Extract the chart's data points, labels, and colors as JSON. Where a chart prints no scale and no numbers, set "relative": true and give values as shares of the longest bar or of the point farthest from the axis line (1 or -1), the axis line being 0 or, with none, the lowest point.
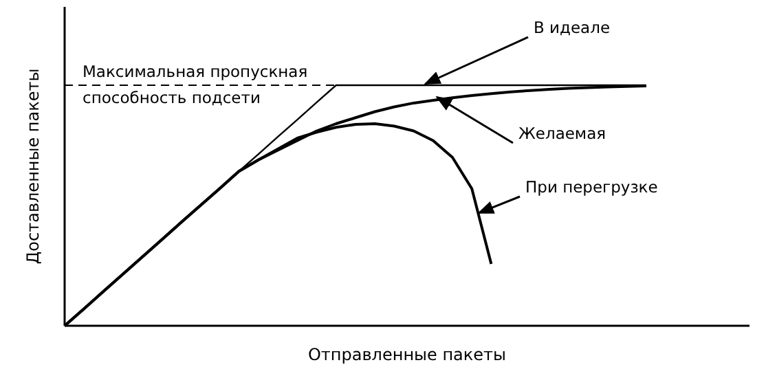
{
  "chart_data": {
    "type": "line",
    "relative": true,
    "xlabel": "Отправленные пакеты",
    "ylabel": "Доставленные пакеты",
    "categories": [
      null,
      null,
      null,
      null,
      null,
      null,
      null,
      null,
      null,
      null,
      null,
      null,
      null,
      null,
      null,
      null,
      null,
      null,
      null,
      null,
      null,
      null,
      null,
      null,
      null,
      null,
      null,
      null,
      null,
      null,
      null
    ],
    "ref_lines": [
      {
        "axis": "y",
        "value": 1,
        "label": "Максимальная пропускная способность подсети",
        "line_style": "dashed",
        "color": "#000000"
      }
    ],
    "series": [
      {
        "name": "В идеале",
        "color": "#000000",
        "values": [
          0,
          0.071,
          0.143,
          0.214,
          0.286,
          0.357,
          0.429,
          0.5,
          0.571,
          0.643,
          0.714,
          0.786,
          0.857,
          0.929,
          1,
          1,
          1,
          1,
          1,
          1,
          1,
          1,
          1,
          1,
          1,
          1,
          1,
          1,
          1,
          1,
          1
        ]
      },
      {
        "name": "Желаемая",
        "color": "#000000",
        "values": [
          0,
          0.071,
          0.143,
          0.214,
          0.286,
          0.357,
          0.429,
          0.5,
          0.571,
          0.643,
          0.69,
          0.73,
          0.77,
          0.81,
          0.84,
          0.865,
          0.89,
          0.91,
          0.926,
          0.937,
          0.948,
          0.957,
          0.965,
          0.972,
          0.978,
          0.983,
          0.987,
          0.99,
          0.993,
          0.995,
          0.997
        ]
      },
      {
        "name": "При перегрузке",
        "color": "#000000",
        "values": [
          0,
          0.071,
          0.143,
          0.214,
          0.286,
          0.357,
          0.429,
          0.5,
          0.571,
          0.643,
          0.69,
          0.735,
          0.78,
          0.805,
          0.825,
          0.837,
          0.84,
          0.83,
          0.81,
          0.77,
          0.7,
          0.57,
          0.257,
          null,
          null,
          null,
          null,
          null,
          null,
          null,
          null
        ]
      }
    ]
  }
}
